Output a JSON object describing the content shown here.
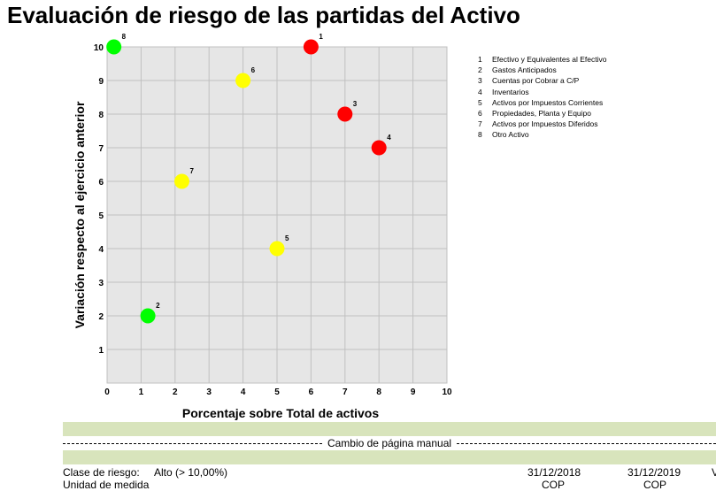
{
  "page_title": "Evaluación de riesgo de las partidas del Activo",
  "chart_data": {
    "type": "scatter",
    "title": "",
    "xlabel": "Porcentaje sobre Total de activos",
    "ylabel": "Variación respecto al ejercicio anterior",
    "xlim": [
      0,
      10
    ],
    "ylim": [
      0,
      10
    ],
    "xticks": [
      0,
      1,
      2,
      3,
      4,
      5,
      6,
      7,
      8,
      9,
      10
    ],
    "yticks": [
      1,
      2,
      3,
      4,
      5,
      6,
      7,
      8,
      9,
      10
    ],
    "grid": true,
    "legend_position": "right",
    "points": [
      {
        "label": "1",
        "x": 6.0,
        "y": 10.0,
        "color": "#ff0000"
      },
      {
        "label": "2",
        "x": 1.2,
        "y": 2.0,
        "color": "#00ff00"
      },
      {
        "label": "3",
        "x": 7.0,
        "y": 8.0,
        "color": "#ff0000"
      },
      {
        "label": "4",
        "x": 8.0,
        "y": 7.0,
        "color": "#ff0000"
      },
      {
        "label": "5",
        "x": 5.0,
        "y": 4.0,
        "color": "#ffff00"
      },
      {
        "label": "6",
        "x": 4.0,
        "y": 9.0,
        "color": "#ffff00"
      },
      {
        "label": "7",
        "x": 2.2,
        "y": 6.0,
        "color": "#ffff00"
      },
      {
        "label": "8",
        "x": 0.2,
        "y": 10.0,
        "color": "#00ff00"
      }
    ]
  },
  "legend": [
    {
      "num": "1",
      "text": "Efectivo y Equivalentes al Efectivo"
    },
    {
      "num": "2",
      "text": "Gastos Anticipados"
    },
    {
      "num": "3",
      "text": "Cuentas por Cobrar a C/P"
    },
    {
      "num": "4",
      "text": "Inventarios"
    },
    {
      "num": "5",
      "text": "Activos por Impuestos Corrientes"
    },
    {
      "num": "6",
      "text": "Propiedades, Planta y Equipo"
    },
    {
      "num": "7",
      "text": "Activos por Impuestos Diferidos"
    },
    {
      "num": "8",
      "text": "Otro Activo"
    }
  ],
  "page_break_label": "Cambio de página manual",
  "footer": {
    "risk_class_label": "Clase de riesgo:",
    "risk_class_value": "Alto (> 10,00%)",
    "date_1": "31/12/2018",
    "date_2": "31/12/2019",
    "col_cut": "V",
    "row2_col_a": "Unidad de medida",
    "row2_col_b": "COP",
    "row2_col_c": "COP"
  }
}
